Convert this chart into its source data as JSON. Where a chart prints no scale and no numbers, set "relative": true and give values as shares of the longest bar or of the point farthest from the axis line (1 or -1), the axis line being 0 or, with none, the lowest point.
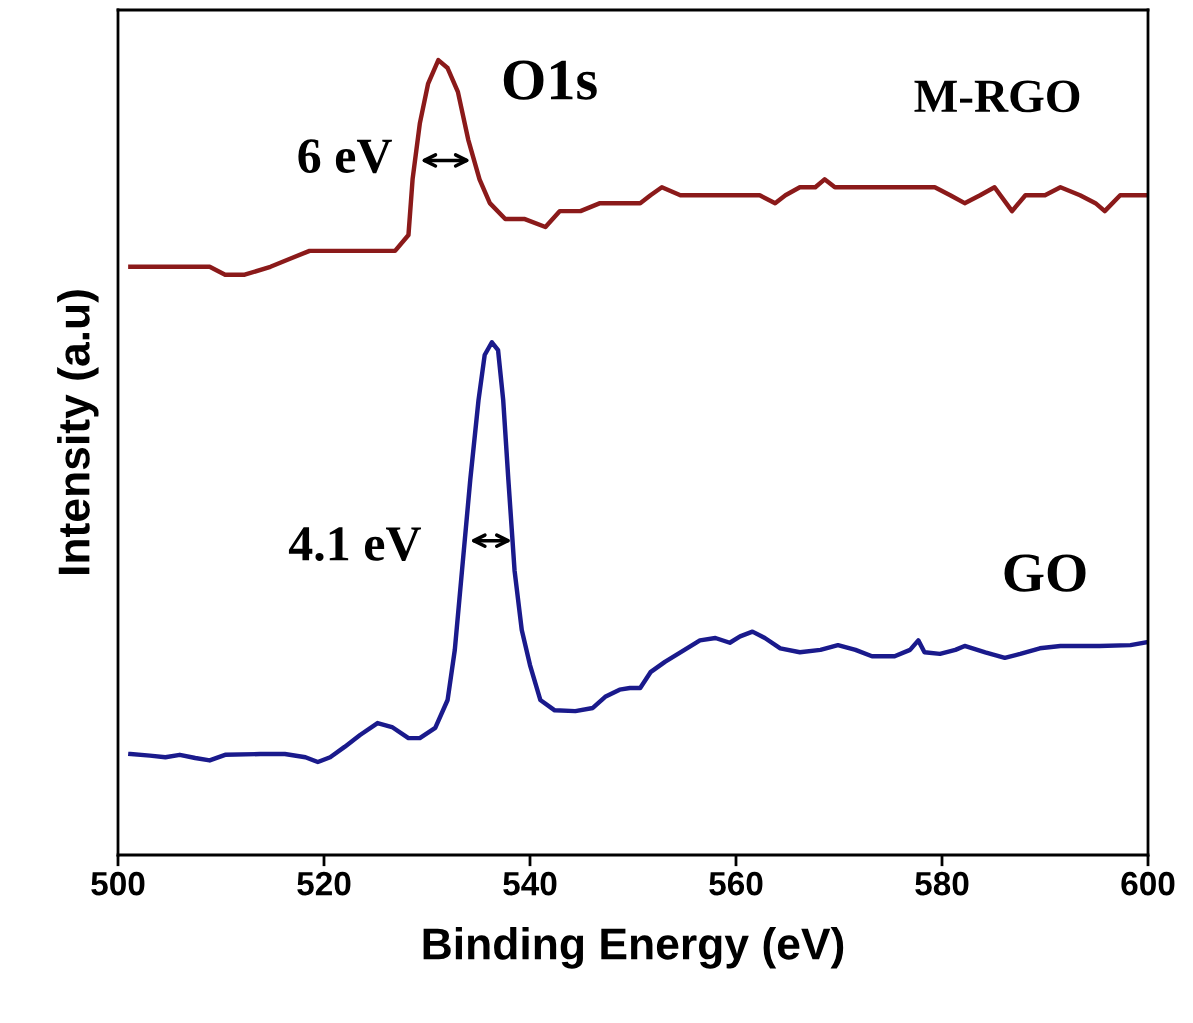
{
  "chart_data": {
    "type": "line",
    "relative": true,
    "xlabel": "Binding Energy (eV)",
    "ylabel": "Intensity (a.u)",
    "xlim": [
      500,
      600
    ],
    "xticks": [
      500,
      520,
      540,
      560,
      580,
      600
    ],
    "grid": false,
    "legend": false,
    "marker": "none",
    "line_style": "solid",
    "series": [
      {
        "color": "#8b1a1a",
        "x": [
          501.2,
          503.1,
          505.5,
          507.5,
          508.9,
          510.4,
          512.3,
          514.8,
          516.7,
          518.6,
          520.1,
          522.0,
          525.0,
          526.9,
          528.2,
          528.6,
          529.3,
          530.1,
          531.1,
          532.0,
          533.0,
          534.0,
          535.1,
          536.1,
          537.6,
          539.5,
          541.5,
          542.9,
          544.9,
          546.8,
          548.3,
          549.7,
          550.7,
          551.7,
          552.8,
          554.6,
          556.5,
          558.4,
          560.4,
          562.3,
          563.8,
          564.8,
          566.2,
          567.7,
          568.6,
          569.6,
          572.0,
          574.0,
          575.9,
          577.9,
          579.3,
          580.8,
          582.2,
          583.7,
          585.1,
          586.8,
          588.1,
          590.0,
          591.5,
          593.4,
          594.9,
          595.8,
          597.3,
          598.7,
          600.0
        ],
        "values": [
          0.74,
          0.74,
          0.74,
          0.74,
          0.74,
          0.73,
          0.73,
          0.74,
          0.75,
          0.76,
          0.76,
          0.76,
          0.76,
          0.76,
          0.78,
          0.85,
          0.92,
          0.97,
          1.0,
          0.99,
          0.96,
          0.9,
          0.85,
          0.82,
          0.8,
          0.8,
          0.79,
          0.81,
          0.81,
          0.82,
          0.82,
          0.82,
          0.82,
          0.83,
          0.84,
          0.83,
          0.83,
          0.83,
          0.83,
          0.83,
          0.82,
          0.83,
          0.84,
          0.84,
          0.85,
          0.84,
          0.84,
          0.84,
          0.84,
          0.84,
          0.84,
          0.83,
          0.82,
          0.83,
          0.84,
          0.81,
          0.83,
          0.83,
          0.84,
          0.83,
          0.82,
          0.81,
          0.83,
          0.83,
          0.83
        ]
      },
      {
        "color": "#1a1a8c",
        "x": [
          501.2,
          503.1,
          504.6,
          506.0,
          507.5,
          508.9,
          510.4,
          513.8,
          516.2,
          518.2,
          519.4,
          520.6,
          522.0,
          523.5,
          525.2,
          526.6,
          528.2,
          529.3,
          530.8,
          532.0,
          532.7,
          533.4,
          534.2,
          535.0,
          535.6,
          536.3,
          536.9,
          537.4,
          537.9,
          538.5,
          539.2,
          540.0,
          541.0,
          542.4,
          544.4,
          546.1,
          547.3,
          548.7,
          549.7,
          550.7,
          551.7,
          553.1,
          555.0,
          556.5,
          558.0,
          559.4,
          560.4,
          561.6,
          562.8,
          564.3,
          566.2,
          568.2,
          569.9,
          571.6,
          573.2,
          575.4,
          576.9,
          577.7,
          578.3,
          579.8,
          581.3,
          582.2,
          584.2,
          586.1,
          587.6,
          589.5,
          591.5,
          595.3,
          598.3,
          600.0
        ],
        "values": [
          0.127,
          0.125,
          0.123,
          0.126,
          0.122,
          0.119,
          0.126,
          0.127,
          0.127,
          0.123,
          0.117,
          0.123,
          0.136,
          0.151,
          0.166,
          0.161,
          0.147,
          0.147,
          0.16,
          0.195,
          0.258,
          0.358,
          0.472,
          0.572,
          0.629,
          0.645,
          0.635,
          0.572,
          0.472,
          0.358,
          0.283,
          0.239,
          0.195,
          0.182,
          0.181,
          0.185,
          0.199,
          0.208,
          0.21,
          0.21,
          0.23,
          0.243,
          0.258,
          0.27,
          0.273,
          0.267,
          0.275,
          0.281,
          0.273,
          0.26,
          0.255,
          0.258,
          0.264,
          0.258,
          0.25,
          0.25,
          0.258,
          0.27,
          0.255,
          0.253,
          0.258,
          0.263,
          0.255,
          0.248,
          0.253,
          0.26,
          0.263,
          0.263,
          0.264,
          0.268
        ]
      }
    ],
    "annotations": [
      "O1s",
      "M-RGO",
      "GO",
      "6 eV",
      "4.1 eV"
    ]
  }
}
